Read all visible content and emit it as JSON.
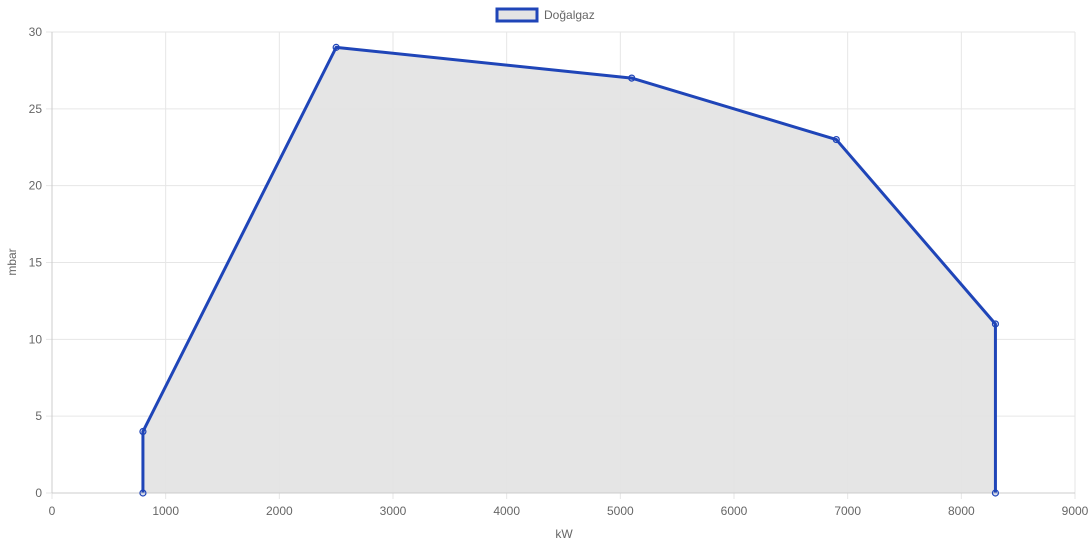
{
  "chart_data": {
    "type": "area",
    "title": "",
    "xlabel": "kW",
    "ylabel": "mbar",
    "xlim": [
      0,
      9000
    ],
    "ylim": [
      0,
      30
    ],
    "x_ticks": [
      0,
      1000,
      2000,
      3000,
      4000,
      5000,
      6000,
      7000,
      8000,
      9000
    ],
    "y_ticks": [
      0,
      5,
      10,
      15,
      20,
      25,
      30
    ],
    "grid": true,
    "legend_position": "top-center",
    "series": [
      {
        "name": "Doğalgaz",
        "color": "#1f45b8",
        "fill": "#e4e4e4",
        "points": [
          {
            "x": 800,
            "y": 0
          },
          {
            "x": 800,
            "y": 4
          },
          {
            "x": 2500,
            "y": 29
          },
          {
            "x": 5100,
            "y": 27
          },
          {
            "x": 6900,
            "y": 23
          },
          {
            "x": 8300,
            "y": 11
          },
          {
            "x": 8300,
            "y": 0
          }
        ]
      }
    ]
  }
}
